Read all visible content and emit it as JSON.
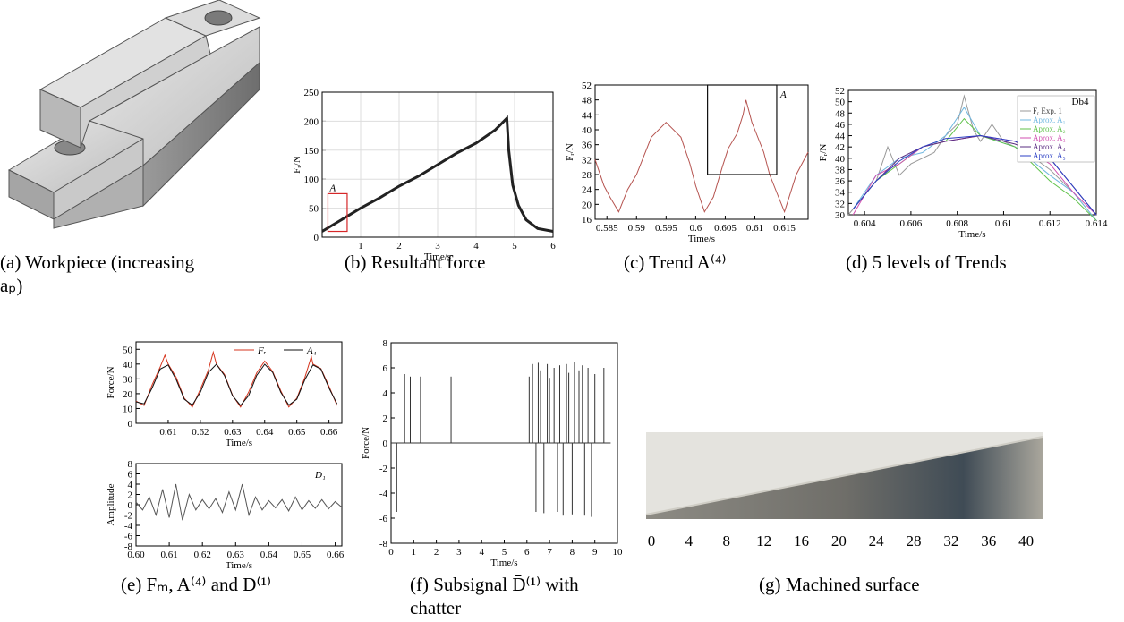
{
  "panels": [
    {
      "caption": [
        "(a) Workpiece (increasing",
        "aₚ)"
      ],
      "charts": []
    },
    {
      "caption": [
        "(b) Resultant force"
      ],
      "charts": [
        {
          "type": "line",
          "xlabel": "Time/s",
          "ylabel": "Fᵣ/N",
          "xlim": [
            0,
            6
          ],
          "ylim": [
            0,
            250
          ],
          "xticks": [
            1,
            2,
            3,
            4,
            5,
            6
          ],
          "yticks": [
            0,
            50,
            100,
            150,
            200,
            250
          ],
          "grid": true,
          "region": {
            "label": "A",
            "color": "#d62728",
            "x": [
              0.15,
              0.65
            ],
            "y": [
              10,
              75
            ]
          },
          "series": [
            {
              "color": "#222222",
              "x": [
                0,
                0.5,
                1,
                1.5,
                2,
                2.5,
                3,
                3.5,
                4,
                4.5,
                4.8,
                4.85,
                4.95,
                5.1,
                5.3,
                5.6,
                6
              ],
              "values": [
                10,
                30,
                50,
                68,
                88,
                105,
                125,
                145,
                162,
                185,
                205,
                150,
                90,
                55,
                30,
                15,
                10
              ]
            }
          ]
        }
      ]
    },
    {
      "caption": [
        "(c) Trend A⁽⁴⁾"
      ],
      "charts": [
        {
          "type": "line",
          "xlabel": "Time/s",
          "ylabel": "Fᵣ/N",
          "xlim": [
            0.583,
            0.619
          ],
          "ylim": [
            16,
            52
          ],
          "xticks": [
            0.585,
            0.59,
            0.595,
            0.6,
            0.605,
            0.61,
            0.615
          ],
          "yticks": [
            16,
            20,
            24,
            28,
            32,
            36,
            40,
            44,
            48,
            52
          ],
          "region": {
            "label": "A",
            "color": "#111111",
            "x": [
              0.602,
              0.6137
            ],
            "y": [
              28,
              52
            ]
          },
          "series": [
            {
              "color": "#b5534f",
              "x": [
                0.583,
                0.5845,
                0.5855,
                0.587,
                0.5885,
                0.59,
                0.5925,
                0.595,
                0.5975,
                0.599,
                0.6,
                0.6015,
                0.603,
                0.6045,
                0.6055,
                0.607,
                0.608,
                0.6085,
                0.6095,
                0.61,
                0.6115,
                0.6125,
                0.614,
                0.615,
                0.617,
                0.619
              ],
              "values": [
                32,
                25,
                22,
                18,
                24,
                28,
                38,
                42,
                38,
                31,
                25,
                18,
                22,
                30,
                35,
                39,
                44,
                48,
                42,
                40,
                34,
                28,
                22,
                18,
                28,
                34
              ]
            }
          ]
        }
      ]
    },
    {
      "caption": [
        "(d) 5 levels of Trends"
      ],
      "charts": [
        {
          "type": "line",
          "xlabel": "Time/s",
          "ylabel": "Fᵣ/N",
          "xlim": [
            0.6033,
            0.614
          ],
          "ylim": [
            30,
            52
          ],
          "xticks": [
            0.604,
            0.606,
            0.608,
            0.61,
            0.612,
            0.614
          ],
          "yticks": [
            30,
            32,
            34,
            36,
            38,
            40,
            42,
            44,
            46,
            48,
            50,
            52
          ],
          "legend": "top-right",
          "legend_title": "Db4",
          "series": [
            {
              "name": "Fᵣ Exp. 1",
              "color": "#999999",
              "x": [
                0.6033,
                0.6045,
                0.605,
                0.6055,
                0.606,
                0.607,
                0.6075,
                0.608,
                0.6083,
                0.6087,
                0.609,
                0.6095,
                0.61,
                0.611,
                0.612,
                0.613,
                0.614
              ],
              "values": [
                30,
                36,
                42,
                37,
                39,
                41,
                44,
                46,
                51,
                45,
                43,
                46,
                43,
                41,
                38,
                34,
                29
              ]
            },
            {
              "name": "Aprox. A₁",
              "color": "#6fb7e0",
              "x": [
                0.6035,
                0.6045,
                0.6055,
                0.6065,
                0.6075,
                0.6083,
                0.609,
                0.6105,
                0.612,
                0.613,
                0.614
              ],
              "values": [
                31,
                37,
                40,
                41,
                44,
                49,
                44,
                42,
                37,
                34,
                29
              ]
            },
            {
              "name": "Aprox. A₂",
              "color": "#5fc24a",
              "x": [
                0.6035,
                0.6045,
                0.6055,
                0.6065,
                0.6075,
                0.6083,
                0.609,
                0.6105,
                0.612,
                0.613,
                0.614
              ],
              "values": [
                31,
                36,
                39,
                42,
                43,
                47,
                44,
                42,
                36,
                33,
                29
              ]
            },
            {
              "name": "Aprox. A₃",
              "color": "#d04fb0",
              "x": [
                0.6035,
                0.6045,
                0.6055,
                0.6065,
                0.6075,
                0.609,
                0.6105,
                0.612,
                0.613,
                0.614
              ],
              "values": [
                30,
                37,
                39,
                42,
                43,
                44,
                43,
                39,
                34,
                30
              ]
            },
            {
              "name": "Aprox. A₄",
              "color": "#5a2d82",
              "x": [
                0.6035,
                0.6045,
                0.6055,
                0.6065,
                0.6075,
                0.609,
                0.6105,
                0.612,
                0.613,
                0.614
              ],
              "values": [
                31,
                36,
                40,
                42,
                43,
                44,
                42.5,
                40,
                35,
                30
              ]
            },
            {
              "name": "Aprox. A₅",
              "color": "#2b3fc4",
              "x": [
                0.6035,
                0.6045,
                0.6055,
                0.6065,
                0.6075,
                0.609,
                0.6105,
                0.612,
                0.613,
                0.614
              ],
              "values": [
                31,
                36,
                39.5,
                42,
                43.5,
                44,
                43,
                40,
                35,
                30
              ]
            }
          ]
        }
      ]
    },
    {
      "caption": [
        "(e) Fₘ, A⁽⁴⁾ and D⁽¹⁾"
      ],
      "charts": [
        {
          "type": "line",
          "xlabel": "Time/s",
          "ylabel": "Force/N",
          "xlim": [
            0.6,
            0.664
          ],
          "ylim": [
            0,
            55
          ],
          "xticks": [
            0.61,
            0.62,
            0.63,
            0.64,
            0.65,
            0.66
          ],
          "yticks": [
            0,
            10,
            20,
            30,
            40,
            50
          ],
          "legend": "top",
          "series": [
            {
              "name": "Fᵣ",
              "color": "#d6361f",
              "x": [
                0.6,
                0.6025,
                0.605,
                0.6075,
                0.609,
                0.61,
                0.6125,
                0.615,
                0.6175,
                0.62,
                0.6225,
                0.624,
                0.625,
                0.6275,
                0.63,
                0.6325,
                0.635,
                0.6375,
                0.64,
                0.6425,
                0.645,
                0.6475,
                0.65,
                0.6525,
                0.6545,
                0.655,
                0.6575,
                0.66,
                0.6625
              ],
              "values": [
                15,
                12,
                26,
                38,
                46,
                40,
                31,
                17,
                11,
                23,
                36,
                48,
                40,
                33,
                19,
                11,
                21,
                34,
                42,
                35,
                22,
                11,
                17,
                31,
                45,
                40,
                37,
                25,
                12
              ]
            },
            {
              "name": "A₄",
              "color": "#111111",
              "x": [
                0.6,
                0.6025,
                0.605,
                0.6075,
                0.61,
                0.6125,
                0.615,
                0.6175,
                0.62,
                0.6225,
                0.625,
                0.6275,
                0.63,
                0.6325,
                0.635,
                0.6375,
                0.64,
                0.6425,
                0.645,
                0.6475,
                0.65,
                0.6525,
                0.655,
                0.6575,
                0.66,
                0.6625
              ],
              "values": [
                14.5,
                13.2,
                23.9,
                36.6,
                39.4,
                29.5,
                16.3,
                12.3,
                21,
                34.4,
                39.9,
                32.3,
                18.7,
                12,
                18.7,
                32.3,
                39.9,
                34.4,
                21,
                12.3,
                16.3,
                29.5,
                39.4,
                36.6,
                23.9,
                13.2
              ]
            }
          ]
        },
        {
          "type": "line",
          "xlabel": "Time/s",
          "ylabel": "Amplitude",
          "xlim": [
            0.6,
            0.662
          ],
          "ylim": [
            -8,
            8
          ],
          "xticks": [
            {
              "value": 0.6,
              "label": "0.60"
            },
            0.61,
            0.62,
            0.63,
            0.64,
            0.65,
            0.66
          ],
          "yticks": [
            -8,
            -6,
            -4,
            -2,
            0,
            2,
            4,
            6,
            8
          ],
          "note": "D₁",
          "series": [
            {
              "color": "#555555",
              "x": [
                0.6,
                0.602,
                0.604,
                0.606,
                0.608,
                0.61,
                0.612,
                0.614,
                0.616,
                0.618,
                0.62,
                0.622,
                0.624,
                0.626,
                0.628,
                0.63,
                0.632,
                0.634,
                0.636,
                0.638,
                0.64,
                0.642,
                0.644,
                0.646,
                0.648,
                0.65,
                0.652,
                0.654,
                0.656,
                0.658,
                0.66,
                0.662
              ],
              "values": [
                0.5,
                -1,
                1.5,
                -2,
                3,
                -2.5,
                4,
                -3,
                2,
                -1,
                1,
                -0.8,
                1.2,
                -1.5,
                2.5,
                -1,
                4,
                -2,
                1.5,
                -1,
                0.8,
                -0.6,
                1,
                -1.2,
                1.5,
                -1,
                0.8,
                -0.7,
                1,
                -0.8,
                0.6,
                -0.5
              ]
            }
          ]
        }
      ]
    },
    {
      "caption": [
        "(f)  Subsignal  D̄⁽¹⁾  with",
        "chatter"
      ],
      "charts": [
        {
          "type": "spike",
          "xlabel": "Time/s",
          "ylabel": "Force/N",
          "xlim": [
            0,
            10
          ],
          "ylim": [
            -8,
            8
          ],
          "xticks": [
            0,
            1,
            2,
            3,
            4,
            5,
            6,
            7,
            8,
            9,
            10
          ],
          "yticks": [
            -8,
            -6,
            -4,
            -2,
            0,
            2,
            4,
            6,
            8
          ],
          "series": [
            {
              "color": "#333333",
              "x": [
                0.25,
                0.6,
                0.85,
                1.3,
                2.65,
                6.1,
                6.25,
                6.4,
                6.5,
                6.6,
                6.75,
                6.9,
                7.0,
                7.2,
                7.35,
                7.45,
                7.6,
                7.75,
                7.85,
                8.0,
                8.1,
                8.3,
                8.45,
                8.55,
                8.7,
                8.85,
                9.0,
                9.4
              ],
              "values": [
                -5.5,
                5.5,
                5.3,
                5.3,
                5.3,
                5.3,
                6.3,
                -5.5,
                6.4,
                5.8,
                -5.6,
                6.3,
                5.2,
                6.0,
                -5.5,
                6.2,
                -5.8,
                6.3,
                5.6,
                -5.7,
                6.5,
                5.8,
                6.2,
                -5.8,
                6.0,
                -5.9,
                5.5,
                6.0
              ]
            }
          ]
        }
      ]
    },
    {
      "caption": [
        "(g) Machined surface"
      ],
      "charts": [],
      "scale": {
        "xlim": [
          0,
          40.8
        ],
        "xticks": [
          0,
          4,
          8,
          12,
          16,
          20,
          24,
          28,
          32,
          36,
          40
        ]
      }
    }
  ]
}
